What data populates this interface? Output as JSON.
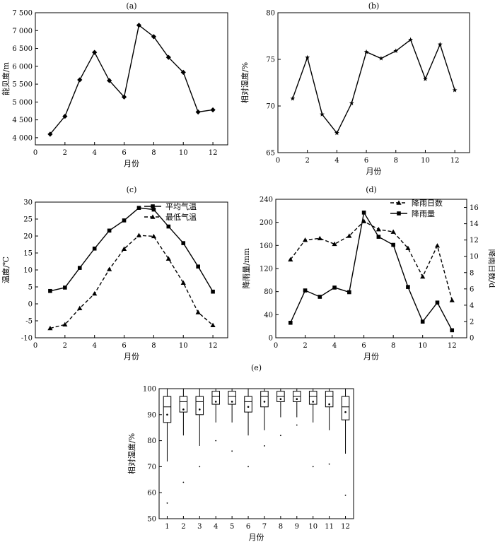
{
  "chart_data": [
    {
      "id": "a",
      "type": "line",
      "title": "(a)",
      "xlabel": "月份",
      "ylabel": "能见度/m",
      "xlim": [
        0,
        13
      ],
      "xticks": [
        0,
        2,
        4,
        6,
        8,
        10,
        12
      ],
      "ylim": [
        3800,
        7500
      ],
      "yticks": [
        4000,
        4500,
        5000,
        5500,
        6000,
        6500,
        7000,
        7500
      ],
      "ytick_labels": [
        "4 000",
        "4 500",
        "5 000",
        "5 500",
        "6 000",
        "6 500",
        "7 000",
        "7 500"
      ],
      "series": [
        {
          "marker": "diamond",
          "dash": "none",
          "x": [
            1,
            2,
            3,
            4,
            5,
            6,
            7,
            8,
            9,
            10,
            11,
            12
          ],
          "y": [
            4100,
            4600,
            5620,
            6390,
            5600,
            5140,
            7150,
            6830,
            6250,
            5830,
            4720,
            4780
          ]
        }
      ]
    },
    {
      "id": "b",
      "type": "line",
      "title": "(b)",
      "xlabel": "月份",
      "ylabel": "相对湿度/%",
      "xlim": [
        0,
        13
      ],
      "xticks": [
        0,
        2,
        4,
        6,
        8,
        10,
        12
      ],
      "ylim": [
        65,
        80
      ],
      "yticks": [
        65,
        70,
        75,
        80
      ],
      "ytick_labels": [
        "65",
        "70",
        "75",
        "80"
      ],
      "series": [
        {
          "marker": "star",
          "dash": "none",
          "x": [
            1,
            2,
            3,
            4,
            5,
            6,
            7,
            8,
            9,
            10,
            11,
            12
          ],
          "y": [
            70.8,
            75.2,
            69.1,
            67.1,
            70.3,
            75.8,
            75.1,
            75.9,
            77.1,
            72.9,
            76.6,
            71.7
          ]
        }
      ]
    },
    {
      "id": "c",
      "type": "line",
      "title": "(c)",
      "xlabel": "月份",
      "ylabel": "温度/℃",
      "xlim": [
        0,
        13
      ],
      "xticks": [
        0,
        2,
        4,
        6,
        8,
        10,
        12
      ],
      "ylim": [
        -10,
        30
      ],
      "yticks": [
        -10,
        -5,
        0,
        5,
        10,
        15,
        20,
        25,
        30
      ],
      "ytick_labels": [
        "-10",
        "-5",
        "0",
        "5",
        "10",
        "15",
        "20",
        "25",
        "30"
      ],
      "legend": "top-right",
      "series": [
        {
          "name": "平均气温",
          "marker": "square",
          "dash": "none",
          "x": [
            1,
            2,
            3,
            4,
            5,
            6,
            7,
            8,
            9,
            10,
            11,
            12
          ],
          "y": [
            3.8,
            4.8,
            10.6,
            16.3,
            21.6,
            24.6,
            28.3,
            27.8,
            22.8,
            17.9,
            11.0,
            3.6
          ]
        },
        {
          "name": "最低气温",
          "marker": "triangle",
          "dash": "dash",
          "x": [
            1,
            2,
            3,
            4,
            5,
            6,
            7,
            8,
            9,
            10,
            11,
            12
          ],
          "y": [
            -7.2,
            -6.1,
            -1.3,
            3.0,
            10.2,
            16.2,
            20.2,
            19.9,
            13.3,
            6.2,
            -2.5,
            -6.3
          ]
        }
      ]
    },
    {
      "id": "d",
      "type": "line",
      "title": "(d)",
      "xlabel": "月份",
      "ylabel": "降雨量/mm",
      "ylabel_right": "降雨日数/d",
      "xlim": [
        0,
        13
      ],
      "xticks": [
        0,
        2,
        4,
        6,
        8,
        10,
        12
      ],
      "ylim": [
        0,
        240
      ],
      "yticks": [
        0,
        40,
        80,
        120,
        160,
        200,
        240
      ],
      "ytick_labels": [
        "0",
        "40",
        "80",
        "120",
        "160",
        "200",
        "240"
      ],
      "ylim_right": [
        0,
        17
      ],
      "yticks_right": [
        0,
        2,
        4,
        6,
        8,
        10,
        12,
        14,
        16
      ],
      "ytick_labels_right": [
        "0",
        "2",
        "4",
        "6",
        "8",
        "10",
        "12",
        "14",
        "16"
      ],
      "legend": "top-right",
      "series": [
        {
          "name": "降雨日数",
          "axis": "right",
          "marker": "triangle",
          "dash": "dash",
          "x": [
            1,
            2,
            3,
            4,
            5,
            6,
            7,
            8,
            9,
            10,
            11,
            12
          ],
          "y": [
            9.6,
            12.0,
            12.2,
            11.5,
            12.5,
            14.3,
            13.3,
            13.0,
            11.0,
            7.5,
            11.3,
            4.6
          ]
        },
        {
          "name": "降雨量",
          "axis": "left",
          "marker": "square",
          "dash": "none",
          "x": [
            1,
            2,
            3,
            4,
            5,
            6,
            7,
            8,
            9,
            10,
            11,
            12
          ],
          "y": [
            26,
            82,
            71,
            87,
            79,
            217,
            175,
            161,
            88,
            28,
            61,
            13
          ]
        }
      ]
    },
    {
      "id": "e",
      "type": "box",
      "title": "(e)",
      "xlabel": "月份",
      "ylabel": "相对湿度/%",
      "categories": [
        "1",
        "2",
        "3",
        "4",
        "5",
        "6",
        "7",
        "8",
        "9",
        "10",
        "11",
        "12"
      ],
      "ylim": [
        50,
        100
      ],
      "yticks": [
        50,
        60,
        70,
        80,
        90,
        100
      ],
      "ytick_labels": [
        "50",
        "60",
        "70",
        "80",
        "90",
        "100"
      ],
      "boxes": [
        {
          "whisker_low": 72,
          "q1": 87,
          "median": 93,
          "q3": 97,
          "whisker_high": 100,
          "mean": 90,
          "outliers": [
            56
          ]
        },
        {
          "whisker_low": 82,
          "q1": 91,
          "median": 95,
          "q3": 97,
          "whisker_high": 100,
          "mean": 92,
          "outliers": [
            64
          ]
        },
        {
          "whisker_low": 78,
          "q1": 90,
          "median": 95,
          "q3": 97,
          "whisker_high": 100,
          "mean": 92,
          "outliers": [
            70
          ]
        },
        {
          "whisker_low": 87,
          "q1": 94,
          "median": 97,
          "q3": 99,
          "whisker_high": 100,
          "mean": 95,
          "outliers": [
            80
          ]
        },
        {
          "whisker_low": 87,
          "q1": 94,
          "median": 97,
          "q3": 99,
          "whisker_high": 100,
          "mean": 95,
          "outliers": [
            76
          ]
        },
        {
          "whisker_low": 82,
          "q1": 91,
          "median": 95,
          "q3": 97,
          "whisker_high": 100,
          "mean": 93,
          "outliers": [
            70
          ]
        },
        {
          "whisker_low": 84,
          "q1": 93,
          "median": 97,
          "q3": 99,
          "whisker_high": 100,
          "mean": 95,
          "outliers": [
            78
          ]
        },
        {
          "whisker_low": 89,
          "q1": 95,
          "median": 97,
          "q3": 99,
          "whisker_high": 100,
          "mean": 96,
          "outliers": [
            82
          ]
        },
        {
          "whisker_low": 89,
          "q1": 95,
          "median": 97,
          "q3": 99,
          "whisker_high": 100,
          "mean": 96,
          "outliers": [
            86
          ]
        },
        {
          "whisker_low": 87,
          "q1": 94,
          "median": 97,
          "q3": 99,
          "whisker_high": 100,
          "mean": 95,
          "outliers": [
            70
          ]
        },
        {
          "whisker_low": 84,
          "q1": 93,
          "median": 97,
          "q3": 99,
          "whisker_high": 100,
          "mean": 94,
          "outliers": [
            71
          ]
        },
        {
          "whisker_low": 75,
          "q1": 88,
          "median": 93,
          "q3": 97,
          "whisker_high": 100,
          "mean": 91,
          "outliers": [
            59
          ]
        }
      ]
    }
  ]
}
